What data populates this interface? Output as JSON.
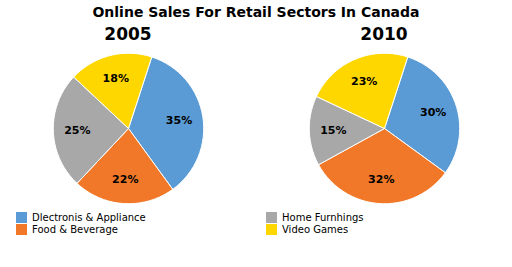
{
  "title": "Online Sales For Retail Sectors In Canada",
  "chart_data": [
    {
      "type": "pie",
      "title": "2005",
      "categories": [
        "Dlectronis & Appliance",
        "Food & Beverage",
        "Home Furnhings",
        "Video Games"
      ],
      "values": [
        35,
        22,
        25,
        18
      ],
      "value_labels": [
        "35%",
        "22%",
        "25%",
        "18%"
      ],
      "colors": [
        "#5B9BD5",
        "#F07828",
        "#A8A8A8",
        "#FFD700"
      ],
      "data_labels": true,
      "legend": "bottom"
    },
    {
      "type": "pie",
      "title": "2010",
      "categories": [
        "Dlectronis & Appliance",
        "Food & Beverage",
        "Home Furnhings",
        "Video Games"
      ],
      "values": [
        30,
        32,
        15,
        23
      ],
      "value_labels": [
        "30%",
        "32%",
        "15%",
        "23%"
      ],
      "colors": [
        "#5B9BD5",
        "#F07828",
        "#A8A8A8",
        "#FFD700"
      ],
      "data_labels": true,
      "legend": "bottom"
    }
  ]
}
